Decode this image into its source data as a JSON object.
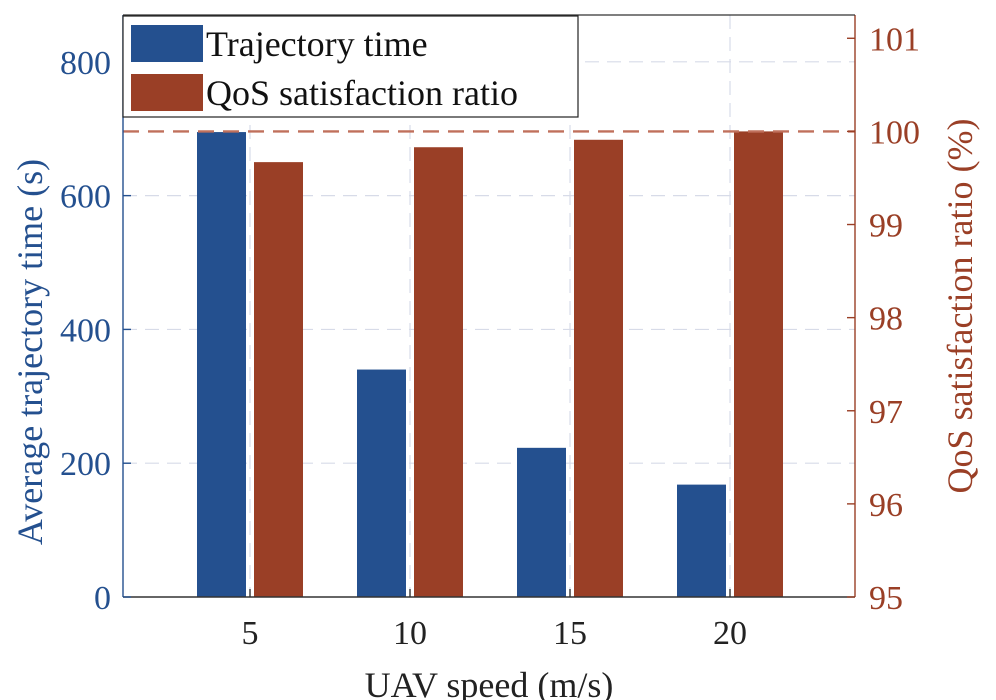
{
  "chart_data": {
    "type": "bar",
    "categories": [
      "5",
      "10",
      "15",
      "20"
    ],
    "series": [
      {
        "name": "Trajectory time",
        "axis": "left",
        "color": "#24508f",
        "values": [
          695,
          340,
          223,
          168
        ]
      },
      {
        "name": "QoS satisfaction ratio",
        "axis": "right",
        "color": "#9a3f26",
        "values": [
          99.67,
          99.83,
          99.91,
          100.0
        ]
      }
    ],
    "xlabel": "UAV speed (m/s)",
    "ylabel_left": "Average trajectory time (s)",
    "ylabel_right": "QoS satisfaction ratio (%)",
    "ylim_left": [
      0,
      870
    ],
    "ylim_right": [
      95,
      101.25
    ],
    "yticks_left": [
      0,
      200,
      400,
      600,
      800
    ],
    "yticks_right": [
      95,
      96,
      97,
      98,
      99,
      100,
      101
    ],
    "reference_line": {
      "axis": "right",
      "value": 100,
      "style": "dashed",
      "color": "#c0705c"
    },
    "grid": true,
    "legend_position": "top-left",
    "colors": {
      "left_axis": "#24508f",
      "right_axis": "#9a3f26",
      "grid": "#d7dbe8"
    }
  }
}
